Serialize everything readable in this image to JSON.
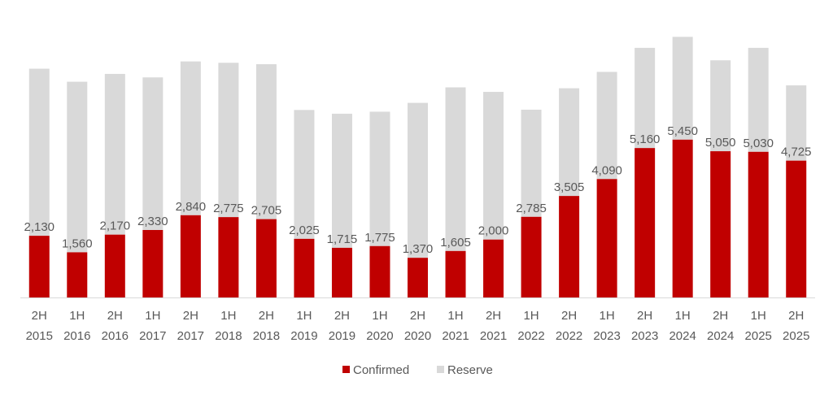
{
  "chart_data": {
    "type": "bar",
    "stacked": true,
    "categories": [
      [
        "2H",
        "2015"
      ],
      [
        "1H",
        "2016"
      ],
      [
        "2H",
        "2016"
      ],
      [
        "1H",
        "2017"
      ],
      [
        "2H",
        "2017"
      ],
      [
        "1H",
        "2018"
      ],
      [
        "2H",
        "2018"
      ],
      [
        "1H",
        "2019"
      ],
      [
        "2H",
        "2019"
      ],
      [
        "1H",
        "2020"
      ],
      [
        "2H",
        "2020"
      ],
      [
        "1H",
        "2021"
      ],
      [
        "2H",
        "2021"
      ],
      [
        "1H",
        "2022"
      ],
      [
        "2H",
        "2022"
      ],
      [
        "1H",
        "2023"
      ],
      [
        "2H",
        "2023"
      ],
      [
        "1H",
        "2024"
      ],
      [
        "2H",
        "2024"
      ],
      [
        "1H",
        "2025"
      ],
      [
        "2H",
        "2025"
      ]
    ],
    "series": [
      {
        "name": "Confirmed",
        "color": "#C00000",
        "values": [
          2130,
          1560,
          2170,
          2330,
          2840,
          2775,
          2705,
          2025,
          1715,
          1775,
          1370,
          1605,
          2000,
          2785,
          3505,
          4090,
          5160,
          5450,
          5050,
          5030,
          4725
        ],
        "labels": [
          "2,130",
          "1,560",
          "2,170",
          "2,330",
          "2,840",
          "2,775",
          "2,705",
          "2,025",
          "1,715",
          "1,775",
          "1,370",
          "1,605",
          "2,000",
          "2,785",
          "3,505",
          "4,090",
          "5,160",
          "5,450",
          "5,050",
          "5,030",
          "4,725"
        ]
      },
      {
        "name": "Reserve",
        "color": "#D9D9D9",
        "values": [
          5770,
          5890,
          5550,
          5270,
          5310,
          5330,
          5350,
          4450,
          4630,
          4640,
          5350,
          5650,
          5100,
          3700,
          3720,
          3700,
          3460,
          3550,
          3140,
          3590,
          2600
        ]
      }
    ],
    "ylim": [
      0,
      9150
    ],
    "grid": false,
    "legend": "bottom",
    "label_color": "#595959",
    "axis_color": "#D9D9D9"
  }
}
